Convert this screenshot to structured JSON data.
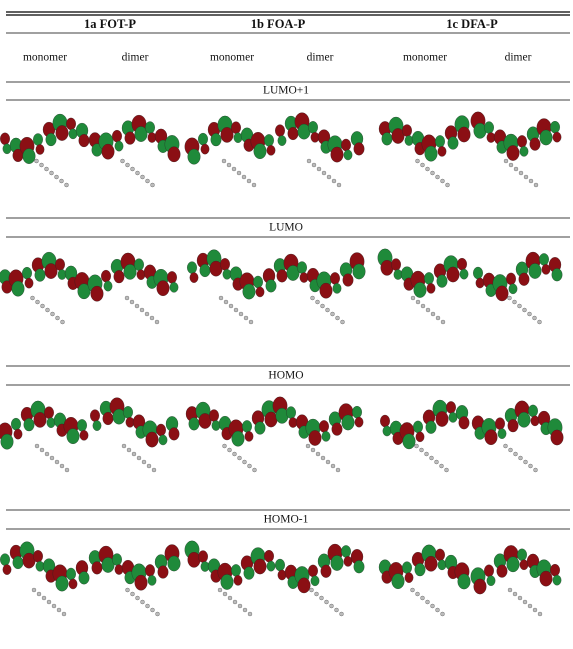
{
  "header": {
    "compounds": [
      "1a FOT-P",
      "1b FOA-P",
      "1c DFA-P"
    ],
    "subheaders": [
      "monomer",
      "dimer",
      "monomer",
      "dimer",
      "monomer",
      "dimer"
    ]
  },
  "sections": [
    "LUMO+1",
    "LUMO",
    "HOMO",
    "HOMO-1"
  ]
}
